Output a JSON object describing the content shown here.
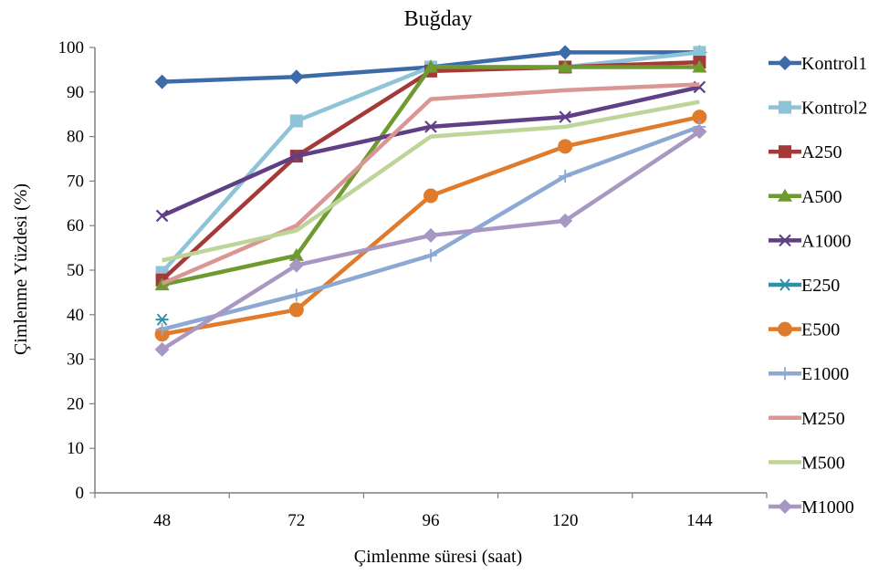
{
  "chart_data": {
    "type": "line",
    "title": "Buğday",
    "xlabel": "Çimlenme süresi (saat)",
    "ylabel": "Çimlenme Yüzdesi (%)",
    "x": [
      48,
      72,
      96,
      120,
      144
    ],
    "ylim": [
      0,
      100
    ],
    "yticks": [
      0,
      10,
      20,
      30,
      40,
      50,
      60,
      70,
      80,
      90,
      100
    ],
    "grid": false,
    "legend_position": "right",
    "series": [
      {
        "name": "Kontrol1",
        "color": "#3D6BA8",
        "marker": "diamond",
        "values": [
          92.3,
          93.4,
          95.6,
          98.9,
          98.9
        ]
      },
      {
        "name": "Kontrol2",
        "color": "#8EC3D8",
        "marker": "square",
        "values": [
          49.5,
          83.5,
          95.6,
          95.6,
          98.9
        ]
      },
      {
        "name": "A250",
        "color": "#A33A37",
        "marker": "square",
        "values": [
          47.8,
          75.6,
          94.7,
          95.6,
          96.7
        ]
      },
      {
        "name": "A500",
        "color": "#6E9A2F",
        "marker": "triangle",
        "values": [
          46.7,
          53.3,
          95.6,
          95.6,
          95.6
        ]
      },
      {
        "name": "A1000",
        "color": "#5F3F85",
        "marker": "x",
        "values": [
          62.2,
          75.6,
          82.2,
          84.4,
          91.1
        ]
      },
      {
        "name": "E250",
        "color": "#2E91A8",
        "marker": "asterisk",
        "values": [
          38.9,
          null,
          null,
          null,
          null
        ]
      },
      {
        "name": "E500",
        "color": "#E07B2B",
        "marker": "circle",
        "values": [
          35.6,
          41.1,
          66.7,
          77.8,
          84.4
        ]
      },
      {
        "name": "E1000",
        "color": "#8DA8D2",
        "marker": "plus",
        "values": [
          36.7,
          44.4,
          53.3,
          71.1,
          82.2
        ]
      },
      {
        "name": "M250",
        "color": "#D99694",
        "marker": "none",
        "values": [
          47.0,
          60.0,
          88.4,
          90.4,
          91.7
        ]
      },
      {
        "name": "M500",
        "color": "#BED59A",
        "marker": "none",
        "values": [
          52.2,
          58.9,
          80.0,
          82.2,
          87.8
        ]
      },
      {
        "name": "M1000",
        "color": "#A897C2",
        "marker": "diamond",
        "values": [
          32.2,
          51.1,
          57.8,
          61.1,
          81.1
        ]
      }
    ]
  }
}
